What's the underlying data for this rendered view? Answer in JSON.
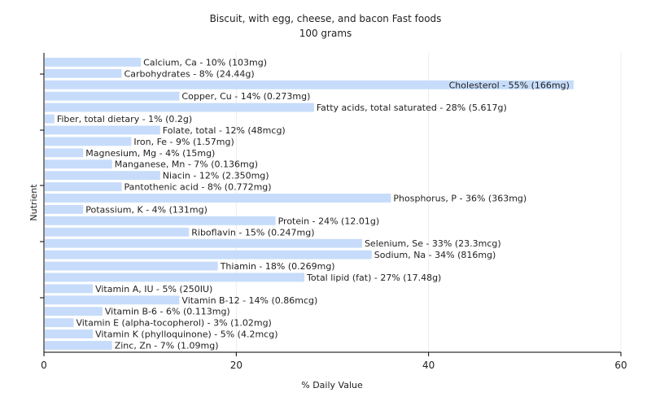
{
  "chart_data": {
    "type": "bar",
    "orientation": "horizontal",
    "title": "Biscuit, with egg, cheese, and bacon Fast foods",
    "subtitle": "100 grams",
    "xlabel": "% Daily Value",
    "ylabel": "Nutrient",
    "xlim": [
      0,
      60
    ],
    "xticks": [
      0,
      20,
      40,
      60
    ],
    "grid": true,
    "bar_color": "#c6dcfa",
    "categories": [
      "Calcium, Ca",
      "Carbohydrates",
      "Cholesterol",
      "Copper, Cu",
      "Fatty acids, total saturated",
      "Fiber, total dietary",
      "Folate, total",
      "Iron, Fe",
      "Magnesium, Mg",
      "Manganese, Mn",
      "Niacin",
      "Pantothenic acid",
      "Phosphorus, P",
      "Potassium, K",
      "Protein",
      "Riboflavin",
      "Selenium, Se",
      "Sodium, Na",
      "Thiamin",
      "Total lipid (fat)",
      "Vitamin A, IU",
      "Vitamin B-12",
      "Vitamin B-6",
      "Vitamin E (alpha-tocopherol)",
      "Vitamin K (phylloquinone)",
      "Zinc, Zn"
    ],
    "values": [
      10,
      8,
      55,
      14,
      28,
      1,
      12,
      9,
      4,
      7,
      12,
      8,
      36,
      4,
      24,
      15,
      33,
      34,
      18,
      27,
      5,
      14,
      6,
      3,
      5,
      7
    ],
    "labels": [
      "Calcium, Ca - 10% (103mg)",
      "Carbohydrates - 8% (24.44g)",
      "Cholesterol - 55% (166mg)",
      "Copper, Cu - 14% (0.273mg)",
      "Fatty acids, total saturated - 28% (5.617g)",
      "Fiber, total dietary - 1% (0.2g)",
      "Folate, total - 12% (48mcg)",
      "Iron, Fe - 9% (1.57mg)",
      "Magnesium, Mg - 4% (15mg)",
      "Manganese, Mn - 7% (0.136mg)",
      "Niacin - 12% (2.350mg)",
      "Pantothenic acid - 8% (0.772mg)",
      "Phosphorus, P - 36% (363mg)",
      "Potassium, K - 4% (131mg)",
      "Protein - 24% (12.01g)",
      "Riboflavin - 15% (0.247mg)",
      "Selenium, Se - 33% (23.3mcg)",
      "Sodium, Na - 34% (816mg)",
      "Thiamin - 18% (0.269mg)",
      "Total lipid (fat) - 27% (17.48g)",
      "Vitamin A, IU - 5% (250IU)",
      "Vitamin B-12 - 14% (0.86mcg)",
      "Vitamin B-6 - 6% (0.113mg)",
      "Vitamin E (alpha-tocopherol) - 3% (1.02mg)",
      "Vitamin K (phylloquinone) - 5% (4.2mcg)",
      "Zinc, Zn - 7% (1.09mg)"
    ]
  }
}
